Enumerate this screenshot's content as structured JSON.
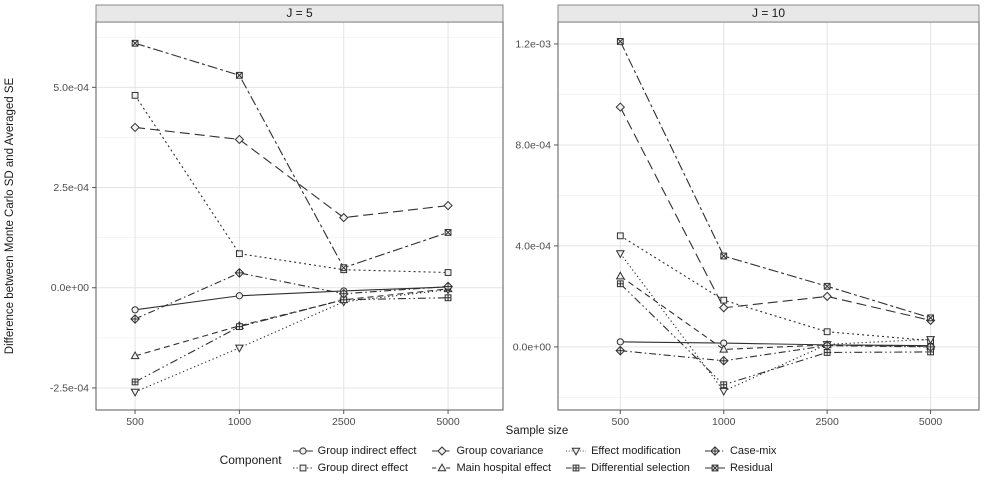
{
  "chart_data": {
    "type": "line",
    "title": "",
    "xlabel": "Sample size",
    "ylabel": "Difference between Monte Carlo SD and Averaged SE",
    "legend_title": "Component",
    "legend_position": "bottom",
    "grid": true,
    "x_categories": [
      "500",
      "1000",
      "2500",
      "5000"
    ],
    "series_meta": [
      {
        "name": "Group indirect effect",
        "shape": "circle-open",
        "linetype": "solid"
      },
      {
        "name": "Group direct effect",
        "shape": "square-open",
        "linetype": "dotted"
      },
      {
        "name": "Group covariance",
        "shape": "diamond-open",
        "linetype": "longdash"
      },
      {
        "name": "Main hospital effect",
        "shape": "triangle-up-open",
        "linetype": "dashed"
      },
      {
        "name": "Effect modification",
        "shape": "triangle-down-open",
        "linetype": "finedot"
      },
      {
        "name": "Differential selection",
        "shape": "square-plus",
        "linetype": "dashdotdot"
      },
      {
        "name": "Case-mix",
        "shape": "diamond-plus",
        "linetype": "dashdot"
      },
      {
        "name": "Residual",
        "shape": "square-x",
        "linetype": "twodash"
      }
    ],
    "legend_columns": [
      [
        0,
        1
      ],
      [
        2,
        3
      ],
      [
        4,
        5
      ],
      [
        6,
        7
      ]
    ],
    "facets": [
      {
        "title": "J = 5",
        "ylim": [
          -0.000305,
          0.000663
        ],
        "yticks": [
          {
            "value": 0.0005,
            "label": "5.0e-04"
          },
          {
            "value": 0.00025,
            "label": "2.5e-04"
          },
          {
            "value": 0.0,
            "label": "0.0e+00"
          },
          {
            "value": -0.00025,
            "label": "-2.5e-04"
          }
        ],
        "series": [
          {
            "name": "Group indirect effect",
            "values": [
              -5.5e-05,
              -2e-05,
              -8e-06,
              2e-06
            ]
          },
          {
            "name": "Group direct effect",
            "values": [
              0.00048,
              8.5e-05,
              4.5e-05,
              3.8e-05
            ]
          },
          {
            "name": "Group covariance",
            "values": [
              0.0004,
              0.00037,
              0.000175,
              0.000205
            ]
          },
          {
            "name": "Main hospital effect",
            "values": [
              -0.00017,
              -9.5e-05,
              -3e-05,
              -3e-06
            ]
          },
          {
            "name": "Effect modification",
            "values": [
              -0.00026,
              -0.00015,
              -3.5e-05,
              -5e-06
            ]
          },
          {
            "name": "Differential selection",
            "values": [
              -0.000235,
              -9.7e-05,
              -3e-05,
              -2.5e-05
            ]
          },
          {
            "name": "Case-mix",
            "values": [
              -7.8e-05,
              3.7e-05,
              -1.5e-05,
              3e-06
            ]
          },
          {
            "name": "Residual",
            "values": [
              0.00061,
              0.00053,
              5e-05,
              0.000138
            ]
          }
        ]
      },
      {
        "title": "J = 10",
        "ylim": [
          -0.00025,
          0.001287
        ],
        "yticks": [
          {
            "value": 0.0012,
            "label": "1.2e-03"
          },
          {
            "value": 0.0008,
            "label": "8.0e-04"
          },
          {
            "value": 0.0004,
            "label": "4.0e-04"
          },
          {
            "value": 0.0,
            "label": "0.0e+00"
          }
        ],
        "series": [
          {
            "name": "Group indirect effect",
            "values": [
              2e-05,
              1.5e-05,
              8e-06,
              5e-06
            ]
          },
          {
            "name": "Group direct effect",
            "values": [
              0.00044,
              0.000185,
              6e-05,
              2.5e-05
            ]
          },
          {
            "name": "Group covariance",
            "values": [
              0.00095,
              0.000155,
              0.0002,
              0.000105
            ]
          },
          {
            "name": "Main hospital effect",
            "values": [
              0.00028,
              -1e-05,
              8e-06,
              2e-06
            ]
          },
          {
            "name": "Effect modification",
            "values": [
              0.00037,
              -0.000175,
              1e-05,
              3e-05
            ]
          },
          {
            "name": "Differential selection",
            "values": [
              0.00025,
              -0.00015,
              -2.2e-05,
              -2e-05
            ]
          },
          {
            "name": "Case-mix",
            "values": [
              -1.5e-05,
              -5.5e-05,
              5e-06,
              0.0
            ]
          },
          {
            "name": "Residual",
            "values": [
              0.00121,
              0.00036,
              0.00024,
              0.000115
            ]
          }
        ]
      }
    ],
    "colors": {
      "line": "#303030",
      "marker_fill": "#f0f0f0",
      "grid_major": "#e4e4e4",
      "grid_minor": "#f2f2f2",
      "panel_border": "#595959",
      "strip_bg": "#e8e8e8",
      "strip_border": "#6e6e6e",
      "tick_text": "#4d4d4d",
      "text": "#1a1a1a"
    }
  }
}
